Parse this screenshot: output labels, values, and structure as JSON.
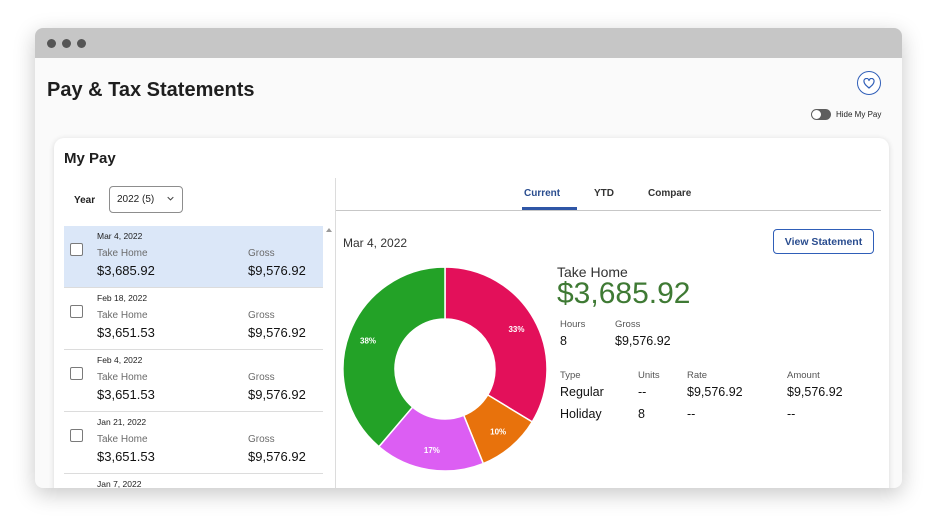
{
  "page": {
    "title": "Pay & Tax Statements",
    "hide_toggle_label": "Hide My Pay"
  },
  "icons": {
    "favorite": "heart-icon",
    "dropdown": "chevron-down-icon"
  },
  "card": {
    "title": "My Pay",
    "year_label": "Year",
    "year_value": "2022 (5)"
  },
  "statements": [
    {
      "date": "Mar 4, 2022",
      "take_home_label": "Take Home",
      "take_home": "$3,685.92",
      "gross_label": "Gross",
      "gross": "$9,576.92",
      "selected": true
    },
    {
      "date": "Feb 18, 2022",
      "take_home_label": "Take Home",
      "take_home": "$3,651.53",
      "gross_label": "Gross",
      "gross": "$9,576.92",
      "selected": false
    },
    {
      "date": "Feb 4, 2022",
      "take_home_label": "Take Home",
      "take_home": "$3,651.53",
      "gross_label": "Gross",
      "gross": "$9,576.92",
      "selected": false
    },
    {
      "date": "Jan 21, 2022",
      "take_home_label": "Take Home",
      "take_home": "$3,651.53",
      "gross_label": "Gross",
      "gross": "$9,576.92",
      "selected": false
    },
    {
      "date": "Jan 7, 2022"
    }
  ],
  "tabs": [
    {
      "label": "Current",
      "active": true
    },
    {
      "label": "YTD",
      "active": false
    },
    {
      "label": "Compare",
      "active": false
    }
  ],
  "detail": {
    "date": "Mar 4, 2022",
    "view_button": "View Statement",
    "take_home_label": "Take Home",
    "take_home": "$3,685.92",
    "hours_label": "Hours",
    "hours": "8",
    "gross_label": "Gross",
    "gross": "$9,576.92",
    "columns": [
      "Type",
      "Units",
      "Rate",
      "Amount"
    ],
    "rows": [
      [
        "Regular",
        "--",
        "$9,576.92",
        "$9,576.92"
      ],
      [
        "Holiday",
        "8",
        "--",
        "--"
      ]
    ]
  },
  "donut": {
    "segments": [
      {
        "label": "33%",
        "value": 33,
        "color": "#e3105a"
      },
      {
        "label": "10%",
        "value": 10,
        "color": "#e8720c"
      },
      {
        "label": "17%",
        "value": 17,
        "color": "#dc5ef3"
      },
      {
        "label": "38%",
        "value": 38,
        "color": "#23a227"
      }
    ]
  },
  "colors": {
    "accent": "#2f56a6",
    "take_home": "#3f7a34",
    "selected_row": "#dbe7f8"
  }
}
